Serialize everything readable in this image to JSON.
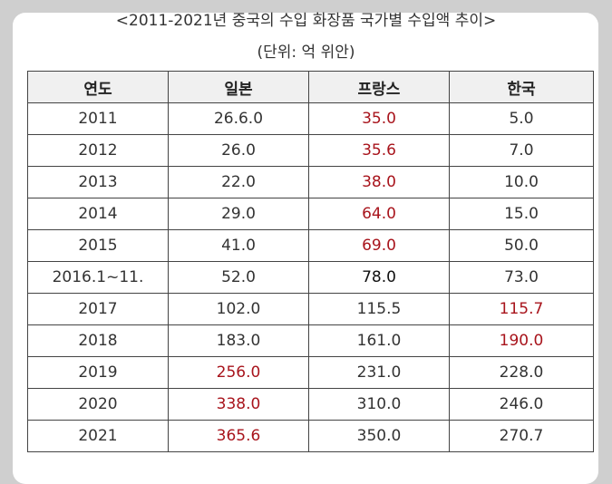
{
  "title": "<2011-2021년 중국의 수입 화장품 국가별 수입액 추이>",
  "unit": "(단위: 억 위안)",
  "headers": [
    "연도",
    "일본",
    "프랑스",
    "한국"
  ],
  "highlight_color": "#a8141c",
  "rows": [
    {
      "year": "2011",
      "japan": "26.6.0",
      "france": "35.0",
      "korea": "5.0",
      "hl": [
        "france"
      ]
    },
    {
      "year": "2012",
      "japan": "26.0",
      "france": "35.6",
      "korea": "7.0",
      "hl": [
        "france"
      ]
    },
    {
      "year": "2013",
      "japan": "22.0",
      "france": "38.0",
      "korea": "10.0",
      "hl": [
        "france"
      ]
    },
    {
      "year": "2014",
      "japan": "29.0",
      "france": "64.0",
      "korea": "15.0",
      "hl": [
        "france"
      ]
    },
    {
      "year": "2015",
      "japan": "41.0",
      "france": "69.0",
      "korea": "50.0",
      "hl": [
        "france"
      ]
    },
    {
      "year": "2016.1~11.",
      "japan": "52.0",
      "france": "78.0",
      "korea": "73.0",
      "hl": []
    },
    {
      "year": "2017",
      "japan": "102.0",
      "france": "115.5",
      "korea": "115.7",
      "hl": [
        "korea"
      ]
    },
    {
      "year": "2018",
      "japan": "183.0",
      "france": "161.0",
      "korea": "190.0",
      "hl": [
        "korea"
      ]
    },
    {
      "year": "2019",
      "japan": "256.0",
      "france": "231.0",
      "korea": "228.0",
      "hl": [
        "japan"
      ]
    },
    {
      "year": "2020",
      "japan": "338.0",
      "france": "310.0",
      "korea": "246.0",
      "hl": [
        "japan"
      ]
    },
    {
      "year": "2021",
      "japan": "365.6",
      "france": "350.0",
      "korea": "270.7",
      "hl": [
        "japan"
      ]
    }
  ]
}
